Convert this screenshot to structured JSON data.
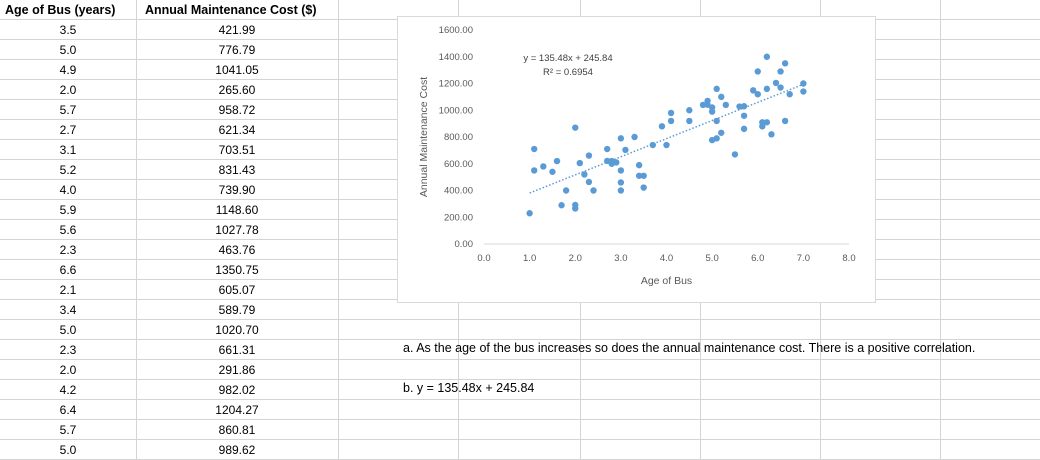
{
  "table": {
    "headers": [
      "Age of Bus (years)",
      "Annual Maintenance Cost ($)"
    ],
    "rows": [
      [
        "3.5",
        "421.99"
      ],
      [
        "5.0",
        "776.79"
      ],
      [
        "4.9",
        "1041.05"
      ],
      [
        "2.0",
        "265.60"
      ],
      [
        "5.7",
        "958.72"
      ],
      [
        "2.7",
        "621.34"
      ],
      [
        "3.1",
        "703.51"
      ],
      [
        "5.2",
        "831.43"
      ],
      [
        "4.0",
        "739.90"
      ],
      [
        "5.9",
        "1148.60"
      ],
      [
        "5.6",
        "1027.78"
      ],
      [
        "2.3",
        "463.76"
      ],
      [
        "6.6",
        "1350.75"
      ],
      [
        "2.1",
        "605.07"
      ],
      [
        "3.4",
        "589.79"
      ],
      [
        "5.0",
        "1020.70"
      ],
      [
        "2.3",
        "661.31"
      ],
      [
        "2.0",
        "291.86"
      ],
      [
        "4.2",
        "982.02"
      ],
      [
        "6.4",
        "1204.27"
      ],
      [
        "5.7",
        "860.81"
      ],
      [
        "5.0",
        "989.62"
      ]
    ]
  },
  "answers": {
    "a": "a. As the age of the bus increases so does the annual maintenance cost. There is a positive correlation.",
    "b": "b. y = 135.48x + 245.84"
  },
  "chart_data": {
    "type": "scatter",
    "title": "",
    "xlabel": "Age of Bus",
    "ylabel": "Annual Maintenance Cost",
    "xlim": [
      0,
      8
    ],
    "ylim": [
      0,
      1600
    ],
    "x_ticks": [
      "0.0",
      "1.0",
      "2.0",
      "3.0",
      "4.0",
      "5.0",
      "6.0",
      "7.0",
      "8.0"
    ],
    "y_ticks": [
      "0.00",
      "200.00",
      "400.00",
      "600.00",
      "800.00",
      "1000.00",
      "1200.00",
      "1400.00",
      "1600.00"
    ],
    "grid": false,
    "point_color": "#5b9bd5",
    "trendline": {
      "slope": 135.48,
      "intercept": 245.84,
      "x_range": [
        1.0,
        7.0
      ],
      "equation_label": "y = 135.48x + 245.84",
      "r2_label": "R² = 0.6954",
      "style": "dotted",
      "color": "#5b9bd5"
    },
    "points": [
      [
        1.0,
        230
      ],
      [
        1.1,
        710
      ],
      [
        1.1,
        550
      ],
      [
        1.3,
        580
      ],
      [
        1.5,
        540
      ],
      [
        1.6,
        620
      ],
      [
        1.7,
        290
      ],
      [
        1.8,
        400
      ],
      [
        2.0,
        265.6
      ],
      [
        2.0,
        291.86
      ],
      [
        2.0,
        870
      ],
      [
        2.1,
        605.07
      ],
      [
        2.2,
        520
      ],
      [
        2.3,
        463.76
      ],
      [
        2.3,
        661.31
      ],
      [
        2.4,
        400
      ],
      [
        2.7,
        621.34
      ],
      [
        2.7,
        710
      ],
      [
        2.8,
        600
      ],
      [
        2.8,
        620
      ],
      [
        2.9,
        610
      ],
      [
        3.0,
        400
      ],
      [
        3.0,
        460
      ],
      [
        3.0,
        550
      ],
      [
        3.0,
        790
      ],
      [
        3.1,
        703.51
      ],
      [
        3.3,
        800
      ],
      [
        3.4,
        589.79
      ],
      [
        3.4,
        510
      ],
      [
        3.5,
        421.99
      ],
      [
        3.5,
        510
      ],
      [
        3.7,
        740
      ],
      [
        3.9,
        880
      ],
      [
        4.0,
        739.9
      ],
      [
        4.1,
        920
      ],
      [
        4.1,
        980
      ],
      [
        4.5,
        920
      ],
      [
        4.5,
        1000
      ],
      [
        4.8,
        1040
      ],
      [
        4.9,
        1041.05
      ],
      [
        4.9,
        1070
      ],
      [
        5.0,
        776.79
      ],
      [
        5.0,
        989.62
      ],
      [
        5.0,
        1020.7
      ],
      [
        5.1,
        790
      ],
      [
        5.1,
        1160
      ],
      [
        5.1,
        920
      ],
      [
        5.2,
        831.43
      ],
      [
        5.2,
        1100
      ],
      [
        5.3,
        1040
      ],
      [
        5.5,
        670
      ],
      [
        5.6,
        1027.78
      ],
      [
        5.7,
        860.81
      ],
      [
        5.7,
        958.72
      ],
      [
        5.7,
        1030
      ],
      [
        5.9,
        1148.6
      ],
      [
        6.0,
        1290
      ],
      [
        6.0,
        1120
      ],
      [
        6.1,
        880
      ],
      [
        6.1,
        910
      ],
      [
        6.2,
        910
      ],
      [
        6.3,
        820
      ],
      [
        6.2,
        1400
      ],
      [
        6.2,
        1160
      ],
      [
        6.4,
        1204.27
      ],
      [
        6.5,
        1170
      ],
      [
        6.5,
        1290
      ],
      [
        6.6,
        1350.75
      ],
      [
        6.6,
        920
      ],
      [
        6.7,
        1120
      ],
      [
        7.0,
        1200
      ],
      [
        7.0,
        1140
      ]
    ]
  }
}
